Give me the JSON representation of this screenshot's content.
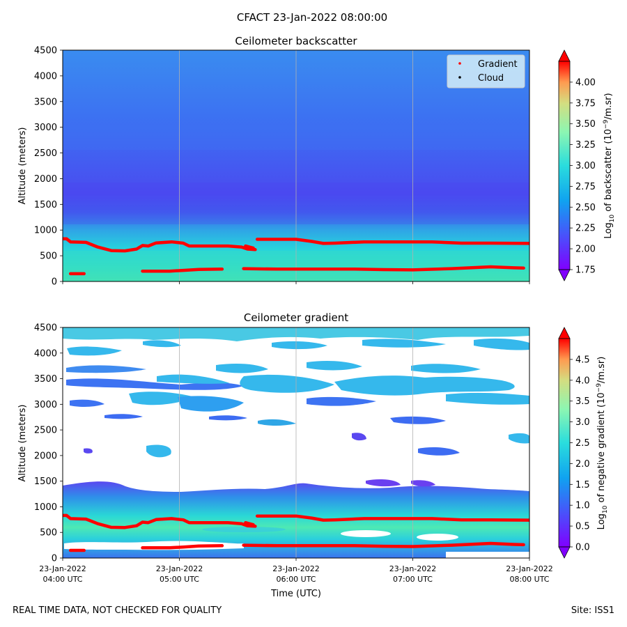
{
  "suptitle": "CFACT 23-Jan-2022 08:00:00",
  "footer_left": "REAL TIME DATA, NOT CHECKED FOR QUALITY",
  "footer_right": "Site: ISS1",
  "chart_data": [
    {
      "type": "heatmap",
      "title": "Ceilometer backscatter",
      "ylabel": "Altitude (meters)",
      "xlim": [
        "2022-01-23T04:00",
        "2022-01-23T08:00"
      ],
      "ylim": [
        0,
        4500
      ],
      "y_ticks": [
        0,
        500,
        1000,
        1500,
        2000,
        2500,
        3000,
        3500,
        4000,
        4500
      ],
      "x_ticks": [
        "2022-01-23T04:00",
        "2022-01-23T05:00",
        "2022-01-23T06:00",
        "2022-01-23T07:00",
        "2022-01-23T08:00"
      ],
      "x_tick_labels_visible": false,
      "grid": "vertical",
      "colormap": "rainbow",
      "colorbar": {
        "label": "Log10 of backscatter (10^-9/m.sr)",
        "range": [
          1.75,
          4.25
        ],
        "ticks": [
          1.75,
          2.0,
          2.25,
          2.5,
          2.75,
          3.0,
          3.25,
          3.5,
          3.75,
          4.0
        ],
        "extend": "both"
      },
      "legend": {
        "placement": "upper right",
        "entries": [
          {
            "label": "Gradient",
            "color": "#ff0000",
            "marker": "dot"
          },
          {
            "label": "Cloud",
            "color": "#000000",
            "marker": "dot"
          }
        ]
      },
      "gradient_layers": [
        {
          "name": "upper",
          "color": "#ff0000",
          "points": [
            [
              "2022-01-23T04:00",
              830
            ],
            [
              "2022-01-23T04:02",
              830
            ],
            [
              "2022-01-23T04:04",
              770
            ],
            [
              "2022-01-23T04:12",
              760
            ],
            [
              "2022-01-23T04:18",
              670
            ],
            [
              "2022-01-23T04:25",
              600
            ],
            [
              "2022-01-23T04:32",
              595
            ],
            [
              "2022-01-23T04:38",
              630
            ],
            [
              "2022-01-23T04:41",
              700
            ],
            [
              "2022-01-23T04:44",
              690
            ],
            [
              "2022-01-23T04:48",
              750
            ],
            [
              "2022-01-23T04:56",
              770
            ],
            [
              "2022-01-23T05:02",
              745
            ],
            [
              "2022-01-23T05:05",
              690
            ],
            [
              "2022-01-23T05:15",
              690
            ],
            [
              "2022-01-23T05:25",
              690
            ],
            [
              "2022-01-23T05:32",
              670
            ],
            [
              "2022-01-23T05:35",
              630
            ],
            [
              "2022-01-23T05:39",
              620
            ]
          ]
        },
        {
          "name": "upper",
          "color": "#ff0000",
          "points": [
            [
              "2022-01-23T05:34",
              690
            ],
            [
              "2022-01-23T05:38",
              650
            ]
          ]
        },
        {
          "name": "upper",
          "color": "#ff0000",
          "points": [
            [
              "2022-01-23T05:40",
              820
            ],
            [
              "2022-01-23T06:00",
              820
            ],
            [
              "2022-01-23T06:08",
              780
            ],
            [
              "2022-01-23T06:14",
              740
            ],
            [
              "2022-01-23T06:20",
              745
            ],
            [
              "2022-01-23T06:35",
              770
            ],
            [
              "2022-01-23T06:50",
              770
            ],
            [
              "2022-01-23T07:10",
              770
            ],
            [
              "2022-01-23T07:25",
              745
            ],
            [
              "2022-01-23T07:40",
              745
            ],
            [
              "2022-01-23T08:00",
              740
            ]
          ]
        },
        {
          "name": "lower",
          "color": "#ff0000",
          "points": [
            [
              "2022-01-23T04:04",
              150
            ],
            [
              "2022-01-23T04:11",
              150
            ]
          ]
        },
        {
          "name": "lower",
          "color": "#ff0000",
          "points": [
            [
              "2022-01-23T04:41",
              200
            ],
            [
              "2022-01-23T04:55",
              200
            ],
            [
              "2022-01-23T05:02",
              215
            ],
            [
              "2022-01-23T05:10",
              235
            ],
            [
              "2022-01-23T05:22",
              240
            ]
          ]
        },
        {
          "name": "lower",
          "color": "#ff0000",
          "points": [
            [
              "2022-01-23T05:33",
              250
            ],
            [
              "2022-01-23T05:50",
              240
            ],
            [
              "2022-01-23T06:00",
              240
            ],
            [
              "2022-01-23T06:15",
              240
            ],
            [
              "2022-01-23T06:30",
              240
            ],
            [
              "2022-01-23T06:45",
              230
            ],
            [
              "2022-01-23T07:00",
              225
            ],
            [
              "2022-01-23T07:20",
              250
            ],
            [
              "2022-01-23T07:40",
              285
            ],
            [
              "2022-01-23T07:52",
              265
            ],
            [
              "2022-01-23T07:57",
              260
            ]
          ]
        }
      ]
    },
    {
      "type": "heatmap",
      "title": "Ceilometer gradient",
      "ylabel": "Altitude (meters)",
      "xlabel": "Time (UTC)",
      "xlim": [
        "2022-01-23T04:00",
        "2022-01-23T08:00"
      ],
      "ylim": [
        0,
        4500
      ],
      "y_ticks": [
        0,
        500,
        1000,
        1500,
        2000,
        2500,
        3000,
        3500,
        4000,
        4500
      ],
      "x_tick_labels": [
        {
          "date": "23-Jan-2022",
          "time": "04:00 UTC"
        },
        {
          "date": "23-Jan-2022",
          "time": "05:00 UTC"
        },
        {
          "date": "23-Jan-2022",
          "time": "06:00 UTC"
        },
        {
          "date": "23-Jan-2022",
          "time": "07:00 UTC"
        },
        {
          "date": "23-Jan-2022",
          "time": "08:00 UTC"
        }
      ],
      "grid": "vertical",
      "colormap": "rainbow",
      "colorbar": {
        "label": "Log10 of negative gradient (10^-9/m.sr)",
        "range": [
          0.0,
          5.0
        ],
        "ticks": [
          0.0,
          0.5,
          1.0,
          1.5,
          2.0,
          2.5,
          3.0,
          3.5,
          4.0,
          4.5
        ],
        "extend": "both"
      },
      "gradient_layers": "same as backscatter panel"
    }
  ]
}
